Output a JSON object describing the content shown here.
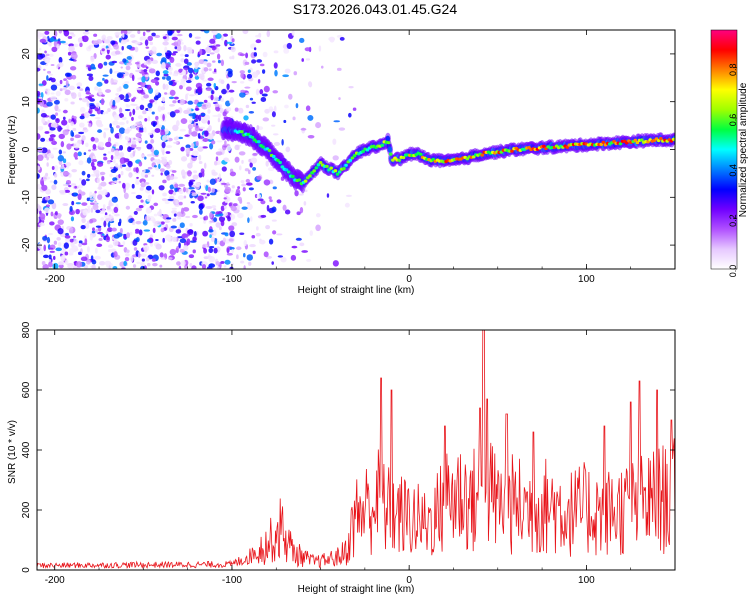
{
  "title": "S173.2026.043.01.45.G24",
  "chart_data": [
    {
      "type": "heatmap",
      "name": "spectrogram",
      "xlabel": "Height of straight line (km)",
      "ylabel": "Frequency (Hz)",
      "xlim": [
        -210,
        150
      ],
      "ylim": [
        -25,
        25
      ],
      "xticks": [
        -200,
        -100,
        0,
        100
      ],
      "yticks": [
        -20,
        -10,
        0,
        10,
        20
      ],
      "colorbar": {
        "label": "Normalized spectral amplitude",
        "range": [
          0,
          0.95
        ],
        "ticks": [
          0.0,
          0.2,
          0.4,
          0.6,
          0.8
        ],
        "colormap": [
          "#ffffff",
          "#e6c8ff",
          "#b050ff",
          "#7000ff",
          "#0000ff",
          "#0080ff",
          "#00ffff",
          "#00ff40",
          "#a0ff00",
          "#ffff00",
          "#ff8000",
          "#ff0000",
          "#ff0080"
        ]
      },
      "ridge": {
        "x": [
          -100,
          -90,
          -80,
          -75,
          -70,
          -65,
          -60,
          -55,
          -50,
          -45,
          -40,
          -35,
          -30,
          -25,
          -20,
          -15,
          -12,
          -10,
          -5,
          0,
          5,
          10,
          20,
          30,
          40,
          50,
          60,
          80,
          100,
          120,
          140,
          150
        ],
        "y": [
          4,
          3,
          0,
          -2,
          -4,
          -6,
          -7,
          -5,
          -3,
          -4,
          -5,
          -3,
          -1,
          0,
          0.5,
          1,
          2,
          -2,
          -2,
          -1,
          -1,
          -2,
          -2.5,
          -2,
          -1,
          -0.5,
          0,
          0.5,
          1,
          1.5,
          2,
          2
        ]
      }
    },
    {
      "type": "line",
      "name": "snr",
      "xlabel": "Height of straight line (km)",
      "ylabel": "SNR (10 * v/v)",
      "xlim": [
        -210,
        150
      ],
      "ylim": [
        0,
        800
      ],
      "xticks": [
        -200,
        -100,
        0,
        100
      ],
      "yticks": [
        0,
        200,
        400,
        600,
        800
      ],
      "color": "#e8141a",
      "envelope": {
        "x": [
          -210,
          -100,
          -90,
          -80,
          -75,
          -72,
          -70,
          -65,
          -60,
          -55,
          -50,
          -45,
          -40,
          -35,
          -32,
          -30,
          -25,
          -20,
          -18,
          -16,
          -10,
          0,
          10,
          18,
          20,
          25,
          30,
          35,
          40,
          43,
          45,
          50,
          60,
          70,
          80,
          90,
          100,
          110,
          120,
          130,
          140,
          145,
          150
        ],
        "y": [
          20,
          25,
          60,
          120,
          160,
          200,
          150,
          80,
          60,
          40,
          40,
          50,
          60,
          90,
          200,
          250,
          280,
          300,
          330,
          300,
          260,
          240,
          210,
          280,
          320,
          340,
          350,
          300,
          360,
          400,
          360,
          300,
          300,
          280,
          300,
          260,
          280,
          260,
          280,
          300,
          320,
          330,
          340
        ]
      },
      "spikes": [
        {
          "x": -16,
          "y": 640
        },
        {
          "x": -10,
          "y": 600
        },
        {
          "x": 20,
          "y": 480
        },
        {
          "x": 40,
          "y": 540
        },
        {
          "x": 42,
          "y": 800
        },
        {
          "x": 44,
          "y": 570
        },
        {
          "x": 55,
          "y": 520
        },
        {
          "x": 70,
          "y": 460
        },
        {
          "x": 110,
          "y": 480
        },
        {
          "x": 125,
          "y": 560
        },
        {
          "x": 130,
          "y": 630
        },
        {
          "x": 140,
          "y": 600
        },
        {
          "x": 148,
          "y": 500
        }
      ]
    }
  ]
}
